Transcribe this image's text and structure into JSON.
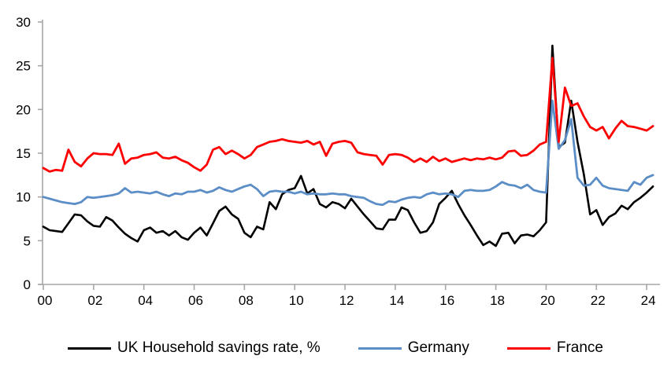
{
  "chart_data": {
    "type": "line",
    "title": "",
    "xlabel": "",
    "ylabel": "",
    "grid": false,
    "legend_position": "bottom",
    "axis_color": "#A6A6A6",
    "tick_label_color": "#000000",
    "ylim": [
      0,
      30
    ],
    "y_ticks": [
      0,
      5,
      10,
      15,
      20,
      25,
      30
    ],
    "x_tick_years": [
      0,
      2,
      4,
      6,
      8,
      10,
      12,
      14,
      16,
      18,
      20,
      22,
      24
    ],
    "x_tick_labels": [
      "00",
      "02",
      "04",
      "06",
      "08",
      "10",
      "12",
      "14",
      "16",
      "18",
      "20",
      "22",
      "24"
    ],
    "x_start_year": 2000,
    "x_step_years": 0.25,
    "series": [
      {
        "name": "UK Household savings rate, %",
        "color": "#000000",
        "line_width": 2.6,
        "values": [
          6.6,
          6.2,
          6.1,
          6.0,
          7.0,
          8.0,
          7.9,
          7.2,
          6.7,
          6.6,
          7.7,
          7.3,
          6.5,
          5.8,
          5.3,
          4.9,
          6.2,
          6.5,
          5.9,
          6.1,
          5.6,
          6.1,
          5.4,
          5.1,
          5.9,
          6.5,
          5.6,
          7.0,
          8.4,
          8.9,
          8.0,
          7.5,
          5.9,
          5.4,
          6.6,
          6.3,
          9.4,
          8.6,
          10.3,
          10.8,
          11.0,
          12.4,
          10.4,
          10.9,
          9.2,
          8.8,
          9.4,
          9.2,
          8.7,
          9.8,
          8.9,
          8.0,
          7.2,
          6.4,
          6.3,
          7.4,
          7.4,
          8.8,
          8.5,
          7.1,
          5.9,
          6.1,
          7.1,
          9.2,
          9.9,
          10.7,
          9.2,
          7.9,
          6.8,
          5.6,
          4.5,
          4.9,
          4.4,
          5.8,
          5.9,
          4.7,
          5.6,
          5.7,
          5.5,
          6.2,
          7.1,
          27.3,
          15.7,
          16.2,
          21.0,
          16.3,
          12.6,
          8.0,
          8.5,
          6.8,
          7.7,
          8.1,
          9.0,
          8.6,
          9.4,
          9.9,
          10.5,
          11.2
        ]
      },
      {
        "name": "Germany",
        "color": "#5B8DC6",
        "line_width": 2.8,
        "values": [
          10.0,
          9.8,
          9.6,
          9.4,
          9.3,
          9.2,
          9.4,
          10.0,
          9.9,
          10.0,
          10.1,
          10.2,
          10.4,
          11.0,
          10.5,
          10.6,
          10.5,
          10.4,
          10.6,
          10.3,
          10.1,
          10.4,
          10.3,
          10.6,
          10.6,
          10.8,
          10.5,
          10.7,
          11.1,
          10.8,
          10.6,
          10.9,
          11.2,
          11.4,
          10.9,
          10.1,
          10.6,
          10.7,
          10.6,
          10.6,
          10.4,
          10.6,
          10.3,
          10.4,
          10.3,
          10.3,
          10.4,
          10.3,
          10.3,
          10.1,
          10.0,
          9.9,
          9.5,
          9.2,
          9.1,
          9.5,
          9.4,
          9.7,
          9.9,
          10.0,
          9.9,
          10.3,
          10.5,
          10.3,
          10.4,
          10.3,
          10.0,
          10.7,
          10.8,
          10.7,
          10.7,
          10.8,
          11.2,
          11.7,
          11.4,
          11.3,
          11.0,
          11.4,
          10.8,
          10.6,
          10.5,
          21.0,
          15.5,
          16.5,
          18.9,
          12.2,
          11.3,
          11.4,
          12.2,
          11.3,
          11.0,
          10.9,
          10.8,
          10.7,
          11.7,
          11.4,
          12.2,
          12.5
        ]
      },
      {
        "name": "France",
        "color": "#FF0000",
        "line_width": 2.8,
        "values": [
          13.3,
          12.9,
          13.1,
          13.0,
          15.4,
          14.0,
          13.5,
          14.4,
          15.0,
          14.9,
          14.9,
          14.8,
          16.1,
          13.8,
          14.4,
          14.5,
          14.8,
          14.9,
          15.1,
          14.5,
          14.4,
          14.6,
          14.2,
          13.9,
          13.4,
          13.0,
          13.7,
          15.4,
          15.7,
          14.9,
          15.3,
          14.9,
          14.4,
          14.8,
          15.7,
          16.0,
          16.3,
          16.4,
          16.6,
          16.4,
          16.3,
          16.2,
          16.4,
          16.0,
          16.3,
          14.7,
          16.1,
          16.3,
          16.4,
          16.2,
          15.1,
          14.9,
          14.8,
          14.7,
          13.7,
          14.8,
          14.9,
          14.8,
          14.5,
          14.0,
          14.4,
          14.0,
          14.6,
          14.1,
          14.4,
          14.0,
          14.2,
          14.4,
          14.2,
          14.4,
          14.3,
          14.5,
          14.3,
          14.5,
          15.2,
          15.3,
          14.7,
          14.8,
          15.3,
          16.0,
          16.3,
          25.9,
          16.3,
          22.5,
          20.4,
          20.7,
          19.2,
          18.0,
          17.6,
          18.0,
          16.7,
          17.8,
          18.7,
          18.1,
          18.0,
          17.8,
          17.6,
          18.1
        ]
      }
    ]
  }
}
